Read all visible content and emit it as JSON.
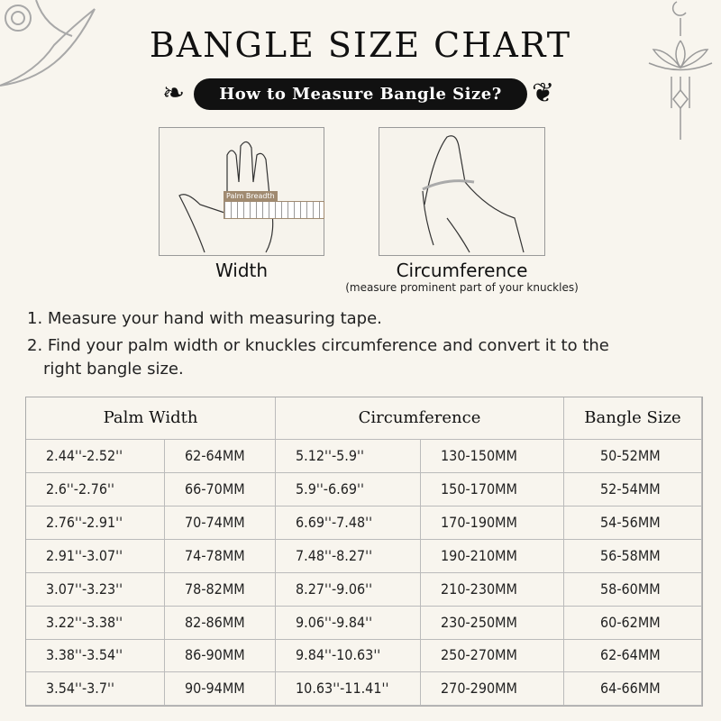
{
  "title": "BANGLE SIZE CHART",
  "subtitle": "How to Measure Bangle Size?",
  "illustrations": {
    "width_label": "Width",
    "ruler_label": "Palm Breadth",
    "circumference_label": "Circumference",
    "circumference_note": "(measure prominent part of your knuckles)"
  },
  "steps": [
    "1. Measure your hand with measuring tape.",
    "2. Find your palm width or knuckles circumference and convert it to the",
    "right bangle size."
  ],
  "table": {
    "headers": [
      "Palm Width",
      "Circumference",
      "Bangle Size"
    ],
    "rows": [
      [
        "2.44''-2.52''",
        "62-64MM",
        "5.12''-5.9''",
        "130-150MM",
        "50-52MM"
      ],
      [
        "2.6''-2.76''",
        "66-70MM",
        "5.9''-6.69''",
        "150-170MM",
        "52-54MM"
      ],
      [
        "2.76''-2.91''",
        "70-74MM",
        "6.69''-7.48''",
        "170-190MM",
        "54-56MM"
      ],
      [
        "2.91''-3.07''",
        "74-78MM",
        "7.48''-8.27''",
        "190-210MM",
        "56-58MM"
      ],
      [
        "3.07''-3.23''",
        "78-82MM",
        "8.27''-9.06''",
        "210-230MM",
        "58-60MM"
      ],
      [
        "3.22''-3.38''",
        "82-86MM",
        "9.06''-9.84''",
        "230-250MM",
        "60-62MM"
      ],
      [
        "3.38''-3.54''",
        "86-90MM",
        "9.84''-10.63''",
        "250-270MM",
        "62-64MM"
      ],
      [
        "3.54''-3.7''",
        "90-94MM",
        "10.63''-11.41''",
        "270-290MM",
        "64-66MM"
      ]
    ]
  },
  "colors": {
    "background": "#f8f5ee",
    "pill": "#111111",
    "ruler": "#a08a70",
    "ornament": "#9a9a9a"
  }
}
